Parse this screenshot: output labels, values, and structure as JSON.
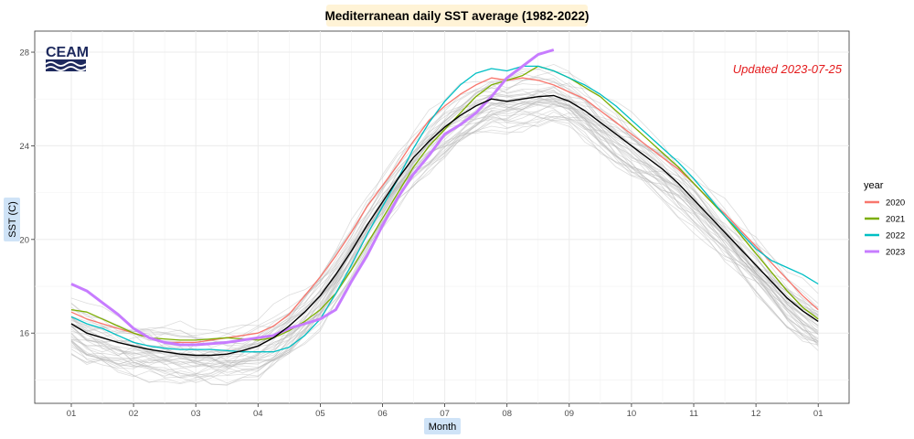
{
  "chart_data": {
    "type": "line",
    "title": "Mediterranean daily SST average (1982-2022)",
    "xlabel": "Month",
    "ylabel": "SST (C)",
    "x_ticks": [
      "01",
      "02",
      "03",
      "04",
      "05",
      "06",
      "07",
      "08",
      "09",
      "10",
      "11",
      "12",
      "01"
    ],
    "y_ticks": [
      16,
      20,
      24,
      28
    ],
    "xlim": [
      0,
      12.5
    ],
    "ylim": [
      13.0,
      28.9
    ],
    "grid": true,
    "legend_title": "year",
    "legend_position": "right",
    "annotation": {
      "text": "Updated 2023-07-25",
      "color": "#e41a1c"
    },
    "logo": {
      "text": "CEAM"
    },
    "background_years": {
      "color": "#b3b3b3",
      "count": 40
    },
    "climatology": {
      "color": "#000000",
      "x": [
        0,
        0.25,
        0.5,
        0.75,
        1,
        1.25,
        1.5,
        1.75,
        2,
        2.25,
        2.5,
        2.75,
        3,
        3.25,
        3.5,
        3.75,
        4,
        4.25,
        4.5,
        4.75,
        5,
        5.25,
        5.5,
        5.75,
        6,
        6.25,
        6.5,
        6.75,
        7,
        7.25,
        7.5,
        7.75,
        8,
        8.25,
        8.5,
        8.75,
        9,
        9.25,
        9.5,
        9.75,
        10,
        10.25,
        10.5,
        10.75,
        11,
        11.25,
        11.5,
        11.75,
        12
      ],
      "y": [
        16.4,
        16.0,
        15.8,
        15.6,
        15.45,
        15.3,
        15.2,
        15.1,
        15.05,
        15.05,
        15.1,
        15.25,
        15.45,
        15.8,
        16.3,
        16.9,
        17.6,
        18.5,
        19.5,
        20.6,
        21.6,
        22.6,
        23.5,
        24.2,
        24.8,
        25.3,
        25.7,
        26.0,
        25.9,
        26.0,
        26.1,
        26.15,
        25.9,
        25.5,
        25.0,
        24.5,
        24.0,
        23.5,
        23.0,
        22.4,
        21.7,
        21.0,
        20.3,
        19.6,
        18.9,
        18.2,
        17.5,
        16.95,
        16.5
      ]
    },
    "series": [
      {
        "name": "2020",
        "color": "#f8766d",
        "x": [
          0,
          0.25,
          0.5,
          0.75,
          1,
          1.25,
          1.5,
          1.75,
          2,
          2.25,
          2.5,
          2.75,
          3,
          3.25,
          3.5,
          3.75,
          4,
          4.25,
          4.5,
          4.75,
          5,
          5.25,
          5.5,
          5.75,
          6,
          6.25,
          6.5,
          6.75,
          7,
          7.25,
          7.5,
          7.75,
          8,
          8.25,
          8.5,
          8.75,
          9,
          9.25,
          9.5,
          9.75,
          10,
          10.25,
          10.5,
          10.75,
          11,
          11.25,
          11.5,
          11.75,
          12
        ],
        "y": [
          16.9,
          16.6,
          16.4,
          16.2,
          16.0,
          15.8,
          15.6,
          15.6,
          15.6,
          15.7,
          15.8,
          15.9,
          16.0,
          16.3,
          16.8,
          17.6,
          18.4,
          19.3,
          20.3,
          21.4,
          22.3,
          23.2,
          24.2,
          25.1,
          25.7,
          26.2,
          26.6,
          26.9,
          26.8,
          26.9,
          26.8,
          26.6,
          26.3,
          26.0,
          25.5,
          25.0,
          24.5,
          24.0,
          23.5,
          23.0,
          22.4,
          21.7,
          21.1,
          20.4,
          19.7,
          19.0,
          18.3,
          17.6,
          17.0
        ]
      },
      {
        "name": "2021",
        "color": "#7cae00",
        "x": [
          0,
          0.25,
          0.5,
          0.75,
          1,
          1.25,
          1.5,
          1.75,
          2,
          2.25,
          2.5,
          2.75,
          3,
          3.25,
          3.5,
          3.75,
          4,
          4.25,
          4.5,
          4.75,
          5,
          5.25,
          5.5,
          5.75,
          6,
          6.25,
          6.5,
          6.75,
          7,
          7.25,
          7.5,
          7.75,
          8,
          8.25,
          8.5,
          8.75,
          9,
          9.25,
          9.5,
          9.75,
          10,
          10.25,
          10.5,
          10.75,
          11,
          11.25,
          11.5,
          11.75,
          12
        ],
        "y": [
          17.0,
          16.9,
          16.6,
          16.3,
          16.0,
          15.8,
          15.75,
          15.7,
          15.7,
          15.75,
          15.8,
          15.75,
          15.7,
          15.8,
          16.1,
          16.5,
          17.0,
          17.7,
          18.7,
          19.8,
          20.9,
          22.0,
          23.1,
          24.0,
          24.7,
          25.4,
          26.1,
          26.6,
          26.8,
          27.0,
          27.4,
          27.2,
          26.9,
          26.5,
          26.1,
          25.5,
          24.9,
          24.3,
          23.7,
          23.1,
          22.4,
          21.7,
          21.0,
          20.2,
          19.4,
          18.6,
          17.8,
          17.1,
          16.6
        ]
      },
      {
        "name": "2022",
        "color": "#00bfc4",
        "x": [
          0,
          0.25,
          0.5,
          0.75,
          1,
          1.25,
          1.5,
          1.75,
          2,
          2.25,
          2.5,
          2.75,
          3,
          3.25,
          3.5,
          3.75,
          4,
          4.25,
          4.5,
          4.75,
          5,
          5.25,
          5.5,
          5.75,
          6,
          6.25,
          6.5,
          6.75,
          7,
          7.25,
          7.5,
          7.75,
          8,
          8.25,
          8.5,
          8.75,
          9,
          9.25,
          9.5,
          9.75,
          10,
          10.25,
          10.5,
          10.75,
          11,
          11.25,
          11.5,
          11.75,
          12
        ],
        "y": [
          16.7,
          16.4,
          16.2,
          15.9,
          15.6,
          15.45,
          15.35,
          15.3,
          15.3,
          15.3,
          15.25,
          15.2,
          15.2,
          15.2,
          15.4,
          15.9,
          16.6,
          17.7,
          18.9,
          20.2,
          21.4,
          22.6,
          23.9,
          25.0,
          25.9,
          26.6,
          27.1,
          27.3,
          27.2,
          27.4,
          27.4,
          27.2,
          26.9,
          26.6,
          26.2,
          25.7,
          25.1,
          24.5,
          23.9,
          23.3,
          22.6,
          21.8,
          21.0,
          20.3,
          19.6,
          19.1,
          18.8,
          18.5,
          18.1
        ]
      },
      {
        "name": "2023",
        "color": "#c77cff",
        "x": [
          0,
          0.25,
          0.5,
          0.75,
          1,
          1.25,
          1.5,
          1.75,
          2,
          2.25,
          2.5,
          2.75,
          3,
          3.25,
          3.5,
          3.75,
          4,
          4.25,
          4.5,
          4.75,
          5,
          5.25,
          5.5,
          5.75,
          6,
          6.25,
          6.5,
          6.75,
          7,
          7.25,
          7.5,
          7.75
        ],
        "y": [
          18.1,
          17.8,
          17.3,
          16.8,
          16.2,
          15.8,
          15.6,
          15.5,
          15.5,
          15.55,
          15.6,
          15.7,
          15.8,
          15.9,
          16.2,
          16.4,
          16.6,
          17.0,
          18.2,
          19.3,
          20.6,
          21.8,
          22.8,
          23.6,
          24.5,
          24.9,
          25.4,
          26.1,
          26.9,
          27.4,
          27.9,
          28.1
        ]
      }
    ]
  }
}
